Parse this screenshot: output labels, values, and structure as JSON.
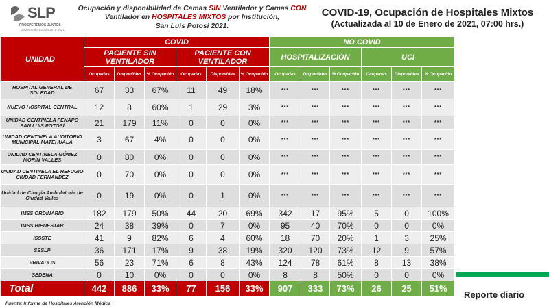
{
  "logo": {
    "text": "SLP",
    "tagline": "PROSPEREMOS JUNTOS",
    "gov": "Gobierno del Estado 2015-2021"
  },
  "subtitle": {
    "p1": "Ocupación y disponibilidad de Camas ",
    "sin": "SIN",
    "p2": " Ventilador y Camas ",
    "con": "CON",
    "p3": " Ventilador en ",
    "hosp": "HOSPITALES MIXTOS",
    "p4": " por Institución,",
    "p5": "San Luis Potosí 2021."
  },
  "title": "COVID-19, Ocupación de Hospitales Mixtos",
  "title2": "(Actualizada al 10 de Enero de 2021, 07:00 hrs.)",
  "headers": {
    "unidad": "UNIDAD",
    "covid": "COVID",
    "no_covid": "NO COVID",
    "sin_vent": "PACIENTE SIN VENTILADOR",
    "con_vent": "PACIENTE CON VENTILADOR",
    "hospitalizacion": "HOSPITALIZACIÓN",
    "uci": "UCI",
    "ocupadas": "Ocupadas",
    "disponibles": "Disponibles",
    "pct": "% Ocupación"
  },
  "rows": [
    {
      "unit": "HOSPITAL GENERAL DE SOLEDAD",
      "v": [
        "67",
        "33",
        "67%",
        "11",
        "49",
        "18%",
        "***",
        "***",
        "***",
        "***",
        "***",
        "***"
      ]
    },
    {
      "unit": "NUEVO HOSPITAL CENTRAL",
      "v": [
        "12",
        "8",
        "60%",
        "1",
        "29",
        "3%",
        "***",
        "***",
        "***",
        "***",
        "***",
        "***"
      ]
    },
    {
      "unit": "UNIDAD CENTINELA FENAPO SAN LUIS POTOSÍ",
      "v": [
        "21",
        "179",
        "11%",
        "0",
        "0",
        "0%",
        "***",
        "***",
        "***",
        "***",
        "***",
        "***"
      ]
    },
    {
      "unit": "UNIDAD CENTINELA AUDITORIO MUNICIPAL MATEHUALA",
      "v": [
        "3",
        "67",
        "4%",
        "0",
        "0",
        "0%",
        "***",
        "***",
        "***",
        "***",
        "***",
        "***"
      ]
    },
    {
      "unit": "UNIDAD CENTINELA GÓMEZ MORÍN VALLES",
      "v": [
        "0",
        "80",
        "0%",
        "0",
        "0",
        "0%",
        "***",
        "***",
        "***",
        "***",
        "***",
        "***"
      ]
    },
    {
      "unit": "UNIDAD CENTINELA EL REFUGIO CIUDAD FERNÁNDEZ",
      "v": [
        "0",
        "70",
        "0%",
        "0",
        "0",
        "0%",
        "***",
        "***",
        "***",
        "***",
        "***",
        "***"
      ]
    },
    {
      "unit": "Unidad de Cirugía Ambulatoria de Ciudad Valles",
      "v": [
        "0",
        "19",
        "0%",
        "0",
        "1",
        "0%",
        "***",
        "***",
        "***",
        "***",
        "***",
        "***"
      ]
    },
    {
      "unit": "IMSS ORDINARIO",
      "v": [
        "182",
        "179",
        "50%",
        "44",
        "20",
        "69%",
        "342",
        "17",
        "95%",
        "5",
        "0",
        "100%"
      ]
    },
    {
      "unit": "IMSS BIENESTAR",
      "v": [
        "24",
        "38",
        "39%",
        "0",
        "7",
        "0%",
        "95",
        "40",
        "70%",
        "0",
        "0",
        "0%"
      ]
    },
    {
      "unit": "ISSSTE",
      "v": [
        "41",
        "9",
        "82%",
        "6",
        "4",
        "60%",
        "18",
        "70",
        "20%",
        "1",
        "3",
        "25%"
      ]
    },
    {
      "unit": "SSSLP",
      "v": [
        "36",
        "171",
        "17%",
        "9",
        "38",
        "19%",
        "320",
        "120",
        "73%",
        "12",
        "9",
        "57%"
      ]
    },
    {
      "unit": "PRIVADOS",
      "v": [
        "56",
        "23",
        "71%",
        "6",
        "8",
        "43%",
        "124",
        "78",
        "61%",
        "8",
        "13",
        "38%"
      ]
    },
    {
      "unit": "SEDENA",
      "v": [
        "0",
        "10",
        "0%",
        "0",
        "0",
        "0%",
        "8",
        "8",
        "50%",
        "0",
        "0",
        "0%"
      ]
    }
  ],
  "total": {
    "label": "Total",
    "v": [
      "442",
      "886",
      "33%",
      "77",
      "156",
      "33%",
      "907",
      "333",
      "73%",
      "26",
      "25",
      "51%"
    ]
  },
  "footer": "Fuente: Informe de Hospitales Atención Médica",
  "report": "Reporte diario"
}
